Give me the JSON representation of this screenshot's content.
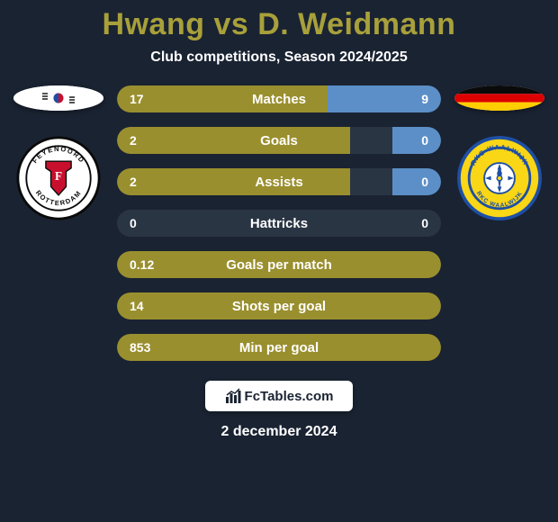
{
  "title": "Hwang vs D. Weidmann",
  "subtitle": "Club competitions, Season 2024/2025",
  "date": "2 december 2024",
  "footer_brand": "FcTables.com",
  "colors": {
    "background": "#1a2332",
    "title_color": "#a8a03a",
    "bar_olive": "#9a8f2e",
    "bar_blue": "#5c8fc7",
    "row_bg": "#2a3544",
    "text": "#ffffff"
  },
  "player_left": {
    "name": "Hwang",
    "country_flag": "south-korea",
    "club": "Feyenoord Rotterdam",
    "club_colors": {
      "primary": "#c8102e",
      "secondary": "#ffffff",
      "outline": "#0a0a0a"
    }
  },
  "player_right": {
    "name": "D. Weidmann",
    "country_flag": "germany",
    "club": "RKC Waalwijk",
    "club_colors": {
      "primary": "#f9d616",
      "secondary": "#1e4fa3"
    }
  },
  "stats": [
    {
      "label": "Matches",
      "left_val": "17",
      "right_val": "9",
      "left_pct": 65,
      "right_pct": 35,
      "left_color": "#9a8f2e",
      "right_color": "#5c8fc7"
    },
    {
      "label": "Goals",
      "left_val": "2",
      "right_val": "0",
      "left_pct": 72,
      "right_pct": 15,
      "left_color": "#9a8f2e",
      "right_color": "#5c8fc7"
    },
    {
      "label": "Assists",
      "left_val": "2",
      "right_val": "0",
      "left_pct": 72,
      "right_pct": 15,
      "left_color": "#9a8f2e",
      "right_color": "#5c8fc7"
    },
    {
      "label": "Hattricks",
      "left_val": "0",
      "right_val": "0",
      "left_pct": 0,
      "right_pct": 0,
      "left_color": "#9a8f2e",
      "right_color": "#5c8fc7"
    },
    {
      "label": "Goals per match",
      "left_val": "0.12",
      "right_val": "",
      "left_pct": 100,
      "right_pct": 0,
      "left_color": "#9a8f2e",
      "right_color": "#5c8fc7"
    },
    {
      "label": "Shots per goal",
      "left_val": "14",
      "right_val": "",
      "left_pct": 100,
      "right_pct": 0,
      "left_color": "#9a8f2e",
      "right_color": "#5c8fc7"
    },
    {
      "label": "Min per goal",
      "left_val": "853",
      "right_val": "",
      "left_pct": 100,
      "right_pct": 0,
      "left_color": "#9a8f2e",
      "right_color": "#5c8fc7"
    }
  ]
}
